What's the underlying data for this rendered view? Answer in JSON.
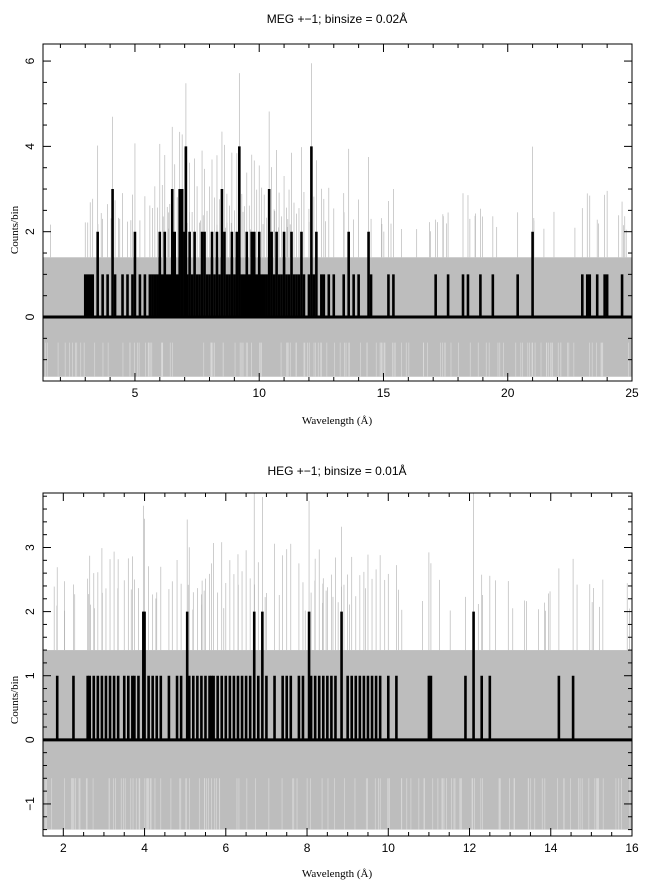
{
  "chart_data": [
    {
      "type": "line",
      "title": "MEG +−1; binsize = 0.02Å",
      "xlabel": "Wavelength (Å)",
      "ylabel": "Counts/bin",
      "xlim": [
        1.3,
        25
      ],
      "ylim": [
        -1.5,
        6.4
      ],
      "xticks": [
        5,
        10,
        15,
        20,
        25
      ],
      "yticks": [
        0,
        2,
        4,
        6
      ],
      "band": [
        -1.4,
        1.4
      ],
      "series": [
        {
          "style": "thick-black",
          "points": [
            [
              3.0,
              1
            ],
            [
              3.1,
              1
            ],
            [
              3.2,
              1
            ],
            [
              3.3,
              1
            ],
            [
              3.5,
              2
            ],
            [
              3.7,
              1
            ],
            [
              3.9,
              1
            ],
            [
              4.1,
              3
            ],
            [
              4.2,
              1
            ],
            [
              4.5,
              1
            ],
            [
              4.7,
              1
            ],
            [
              4.9,
              1
            ],
            [
              5.0,
              2
            ],
            [
              5.2,
              1
            ],
            [
              5.4,
              1
            ],
            [
              5.6,
              1
            ],
            [
              5.7,
              1
            ],
            [
              5.8,
              1
            ],
            [
              5.9,
              1
            ],
            [
              6.0,
              2
            ],
            [
              6.1,
              1
            ],
            [
              6.2,
              2
            ],
            [
              6.3,
              1
            ],
            [
              6.4,
              1
            ],
            [
              6.5,
              3
            ],
            [
              6.6,
              2
            ],
            [
              6.7,
              1
            ],
            [
              6.8,
              3
            ],
            [
              6.9,
              3
            ],
            [
              7.0,
              2
            ],
            [
              7.05,
              4
            ],
            [
              7.1,
              1
            ],
            [
              7.2,
              2
            ],
            [
              7.3,
              1
            ],
            [
              7.4,
              2
            ],
            [
              7.5,
              1
            ],
            [
              7.6,
              1
            ],
            [
              7.7,
              2
            ],
            [
              7.8,
              2
            ],
            [
              7.9,
              1
            ],
            [
              8.0,
              1
            ],
            [
              8.1,
              2
            ],
            [
              8.2,
              1
            ],
            [
              8.3,
              2
            ],
            [
              8.4,
              1
            ],
            [
              8.5,
              3
            ],
            [
              8.6,
              2
            ],
            [
              8.7,
              1
            ],
            [
              8.8,
              1
            ],
            [
              8.9,
              2
            ],
            [
              9.0,
              1
            ],
            [
              9.1,
              2
            ],
            [
              9.2,
              4
            ],
            [
              9.3,
              1
            ],
            [
              9.4,
              1
            ],
            [
              9.5,
              2
            ],
            [
              9.6,
              1
            ],
            [
              9.7,
              2
            ],
            [
              9.8,
              2
            ],
            [
              9.9,
              1
            ],
            [
              10.0,
              2
            ],
            [
              10.1,
              1
            ],
            [
              10.2,
              1
            ],
            [
              10.3,
              1
            ],
            [
              10.4,
              3
            ],
            [
              10.5,
              2
            ],
            [
              10.6,
              1
            ],
            [
              10.7,
              2
            ],
            [
              10.8,
              1
            ],
            [
              10.9,
              1
            ],
            [
              11.0,
              2
            ],
            [
              11.1,
              1
            ],
            [
              11.2,
              1
            ],
            [
              11.3,
              2
            ],
            [
              11.4,
              1
            ],
            [
              11.5,
              1
            ],
            [
              11.6,
              1
            ],
            [
              11.7,
              2
            ],
            [
              11.8,
              1
            ],
            [
              12.0,
              1
            ],
            [
              12.1,
              4
            ],
            [
              12.2,
              1
            ],
            [
              12.3,
              2
            ],
            [
              12.5,
              1
            ],
            [
              12.6,
              1
            ],
            [
              12.8,
              1
            ],
            [
              13.0,
              1
            ],
            [
              13.4,
              1
            ],
            [
              13.6,
              2
            ],
            [
              13.8,
              1
            ],
            [
              14.0,
              1
            ],
            [
              14.4,
              2
            ],
            [
              14.5,
              1
            ],
            [
              15.2,
              1
            ],
            [
              15.4,
              1
            ],
            [
              17.1,
              1
            ],
            [
              17.6,
              1
            ],
            [
              18.2,
              1
            ],
            [
              18.4,
              1
            ],
            [
              18.9,
              1
            ],
            [
              19.4,
              1
            ],
            [
              20.4,
              1
            ],
            [
              21.0,
              2
            ],
            [
              23.0,
              1
            ],
            [
              23.2,
              1
            ],
            [
              23.3,
              1
            ],
            [
              23.6,
              1
            ],
            [
              23.9,
              1
            ],
            [
              24.0,
              1
            ],
            [
              24.6,
              1
            ]
          ]
        }
      ]
    },
    {
      "type": "line",
      "title": "HEG +−1; binsize = 0.01Å",
      "xlabel": "Wavelength (Å)",
      "ylabel": "Counts/bin",
      "xlim": [
        1.5,
        16
      ],
      "ylim": [
        -1.5,
        3.85
      ],
      "xticks": [
        2,
        4,
        6,
        8,
        10,
        12,
        14,
        16
      ],
      "yticks": [
        -1,
        0,
        1,
        2,
        3
      ],
      "band": [
        -1.4,
        1.4
      ],
      "series": [
        {
          "style": "thick-black",
          "points": [
            [
              1.85,
              1
            ],
            [
              2.25,
              1
            ],
            [
              2.6,
              1
            ],
            [
              2.65,
              1
            ],
            [
              2.75,
              1
            ],
            [
              2.85,
              1
            ],
            [
              2.95,
              1
            ],
            [
              3.05,
              1
            ],
            [
              3.15,
              1
            ],
            [
              3.25,
              1
            ],
            [
              3.35,
              1
            ],
            [
              3.5,
              1
            ],
            [
              3.6,
              1
            ],
            [
              3.7,
              1
            ],
            [
              3.75,
              1
            ],
            [
              3.85,
              1
            ],
            [
              3.97,
              2
            ],
            [
              4.0,
              2
            ],
            [
              4.1,
              1
            ],
            [
              4.2,
              1
            ],
            [
              4.3,
              1
            ],
            [
              4.4,
              1
            ],
            [
              4.6,
              1
            ],
            [
              4.8,
              1
            ],
            [
              4.9,
              1
            ],
            [
              5.05,
              2
            ],
            [
              5.1,
              1
            ],
            [
              5.2,
              1
            ],
            [
              5.3,
              1
            ],
            [
              5.4,
              1
            ],
            [
              5.5,
              1
            ],
            [
              5.6,
              1
            ],
            [
              5.65,
              1
            ],
            [
              5.7,
              1
            ],
            [
              5.8,
              1
            ],
            [
              5.9,
              1
            ],
            [
              6.0,
              1
            ],
            [
              6.1,
              1
            ],
            [
              6.2,
              1
            ],
            [
              6.3,
              1
            ],
            [
              6.4,
              1
            ],
            [
              6.5,
              1
            ],
            [
              6.6,
              1
            ],
            [
              6.7,
              2
            ],
            [
              6.8,
              1
            ],
            [
              6.9,
              2
            ],
            [
              7.0,
              1
            ],
            [
              7.2,
              1
            ],
            [
              7.4,
              1
            ],
            [
              7.5,
              1
            ],
            [
              7.6,
              1
            ],
            [
              7.8,
              1
            ],
            [
              7.9,
              1
            ],
            [
              8.05,
              2
            ],
            [
              8.1,
              1
            ],
            [
              8.2,
              1
            ],
            [
              8.3,
              1
            ],
            [
              8.4,
              1
            ],
            [
              8.5,
              1
            ],
            [
              8.6,
              1
            ],
            [
              8.7,
              1
            ],
            [
              8.85,
              2
            ],
            [
              9.0,
              1
            ],
            [
              9.1,
              1
            ],
            [
              9.2,
              1
            ],
            [
              9.3,
              1
            ],
            [
              9.4,
              1
            ],
            [
              9.5,
              1
            ],
            [
              9.6,
              1
            ],
            [
              9.7,
              1
            ],
            [
              9.8,
              1
            ],
            [
              10.0,
              1
            ],
            [
              10.2,
              1
            ],
            [
              11.0,
              1
            ],
            [
              11.05,
              1
            ],
            [
              11.9,
              1
            ],
            [
              12.1,
              2
            ],
            [
              12.3,
              1
            ],
            [
              12.5,
              1
            ],
            [
              14.2,
              1
            ],
            [
              14.55,
              1
            ]
          ]
        }
      ]
    }
  ]
}
